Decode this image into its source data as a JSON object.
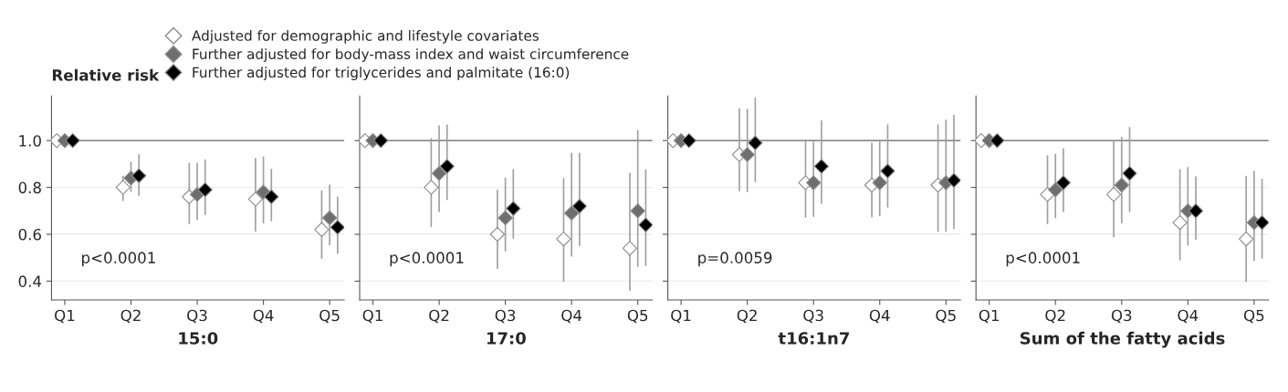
{
  "chart_data": [
    {
      "type": "scatter",
      "ylabel": "Relative risk",
      "xlabel": "15:0",
      "categories": [
        "Q1",
        "Q2",
        "Q3",
        "Q4",
        "Q5"
      ],
      "ylim": [
        0.32,
        1.19
      ],
      "yticks": [
        {
          "value": 0.4,
          "label": "0.4"
        },
        {
          "value": 0.6,
          "label": "0.6"
        },
        {
          "value": 0.8,
          "label": "0.8"
        },
        {
          "value": 1.0,
          "label": "1.0"
        }
      ],
      "grid": "y",
      "legend": "top",
      "marker": "diamond",
      "ref_lines": [
        {
          "axis": "y",
          "value": 1.0,
          "color": "#808080"
        }
      ],
      "annotations": [
        "p<0.0001"
      ],
      "series": [
        {
          "name": "Adjusted for demographic and lifestyle covariates",
          "color": "#ffffff",
          "values": [
            1.0,
            0.8,
            0.76,
            0.75,
            0.62
          ],
          "errors": [
            null,
            [
              0.745,
              0.847
            ],
            [
              0.646,
              0.902
            ],
            [
              0.615,
              0.924
            ],
            [
              0.497,
              0.785
            ]
          ]
        },
        {
          "name": "Further adjusted for body-mass index and waist circumference",
          "color": "#6e6e6e",
          "values": [
            1.0,
            0.84,
            0.77,
            0.78,
            0.67
          ],
          "errors": [
            null,
            [
              0.783,
              0.907
            ],
            [
              0.663,
              0.902
            ],
            [
              0.649,
              0.929
            ],
            [
              0.555,
              0.81
            ]
          ]
        },
        {
          "name": "Further adjusted for triglycerides and palmitate (16:0)",
          "color": "#000000",
          "values": [
            1.0,
            0.85,
            0.79,
            0.76,
            0.63
          ],
          "errors": [
            null,
            [
              0.767,
              0.939
            ],
            [
              0.685,
              0.917
            ],
            [
              0.658,
              0.877
            ],
            [
              0.519,
              0.758
            ]
          ]
        }
      ]
    },
    {
      "type": "scatter",
      "xlabel": "17:0",
      "categories": [
        "Q1",
        "Q2",
        "Q3",
        "Q4",
        "Q5"
      ],
      "ylim": [
        0.32,
        1.19
      ],
      "tick_labels": "x",
      "grid": "y",
      "marker": "diamond",
      "ref_lines": [
        {
          "axis": "y",
          "value": 1.0,
          "color": "#808080"
        }
      ],
      "annotations": [
        "p<0.0001"
      ],
      "series": [
        {
          "color": "#ffffff",
          "values": [
            1.0,
            0.8,
            0.6,
            0.58,
            0.54
          ],
          "errors": [
            null,
            [
              0.633,
              1.008
            ],
            [
              0.455,
              0.788
            ],
            [
              0.401,
              0.837
            ],
            [
              0.361,
              0.86
            ]
          ]
        },
        {
          "color": "#6e6e6e",
          "values": [
            1.0,
            0.86,
            0.67,
            0.69,
            0.7
          ],
          "errors": [
            null,
            [
              0.697,
              1.062
            ],
            [
              0.529,
              0.839
            ],
            [
              0.508,
              0.945
            ],
            [
              0.464,
              1.042
            ]
          ]
        },
        {
          "color": "#000000",
          "values": [
            1.0,
            0.89,
            0.71,
            0.72,
            0.64
          ],
          "errors": [
            null,
            [
              0.749,
              1.067
            ],
            [
              0.584,
              0.875
            ],
            [
              0.553,
              0.945
            ],
            [
              0.467,
              0.874
            ]
          ]
        }
      ]
    },
    {
      "type": "scatter",
      "xlabel": "t16:1n7",
      "categories": [
        "Q1",
        "Q2",
        "Q3",
        "Q4",
        "Q5"
      ],
      "ylim": [
        0.32,
        1.19
      ],
      "tick_labels": "x",
      "grid": "y",
      "marker": "diamond",
      "ref_lines": [
        {
          "axis": "y",
          "value": 1.0,
          "color": "#808080"
        }
      ],
      "annotations": [
        "p=0.0059"
      ],
      "series": [
        {
          "color": "#ffffff",
          "values": [
            1.0,
            0.94,
            0.82,
            0.81,
            0.81
          ],
          "errors": [
            null,
            [
              0.787,
              1.135
            ],
            [
              0.673,
              1.002
            ],
            [
              0.675,
              0.989
            ],
            [
              0.613,
              1.067
            ]
          ]
        },
        {
          "color": "#6e6e6e",
          "values": [
            1.0,
            0.94,
            0.82,
            0.82,
            0.82
          ],
          "errors": [
            null,
            [
              0.783,
              1.133
            ],
            [
              0.677,
              0.993
            ],
            [
              0.68,
              1.002
            ],
            [
              0.613,
              1.087
            ]
          ]
        },
        {
          "color": "#000000",
          "values": [
            1.0,
            0.99,
            0.89,
            0.87,
            0.83
          ],
          "errors": [
            null,
            [
              0.826,
              1.18
            ],
            [
              0.733,
              1.083
            ],
            [
              0.717,
              1.067
            ],
            [
              0.624,
              1.107
            ]
          ]
        }
      ]
    },
    {
      "type": "scatter",
      "xlabel": "Sum of the fatty acids",
      "categories": [
        "Q1",
        "Q2",
        "Q3",
        "Q4",
        "Q5"
      ],
      "ylim": [
        0.32,
        1.19
      ],
      "tick_labels": "x",
      "grid": "y",
      "marker": "diamond",
      "ref_lines": [
        {
          "axis": "y",
          "value": 1.0,
          "color": "#808080"
        }
      ],
      "annotations": [
        "p<0.0001"
      ],
      "series": [
        {
          "color": "#ffffff",
          "values": [
            1.0,
            0.77,
            0.77,
            0.65,
            0.58
          ],
          "errors": [
            null,
            [
              0.646,
              0.934
            ],
            [
              0.589,
              0.997
            ],
            [
              0.491,
              0.875
            ],
            [
              0.399,
              0.847
            ]
          ]
        },
        {
          "color": "#6e6e6e",
          "values": [
            1.0,
            0.79,
            0.81,
            0.7,
            0.65
          ],
          "errors": [
            null,
            [
              0.671,
              0.941
            ],
            [
              0.649,
              1.013
            ],
            [
              0.554,
              0.885
            ],
            [
              0.489,
              0.868
            ]
          ]
        },
        {
          "color": "#000000",
          "values": [
            1.0,
            0.82,
            0.86,
            0.7,
            0.65
          ],
          "errors": [
            null,
            [
              0.697,
              0.964
            ],
            [
              0.697,
              1.055
            ],
            [
              0.579,
              0.845
            ],
            [
              0.499,
              0.834
            ]
          ]
        }
      ]
    }
  ]
}
